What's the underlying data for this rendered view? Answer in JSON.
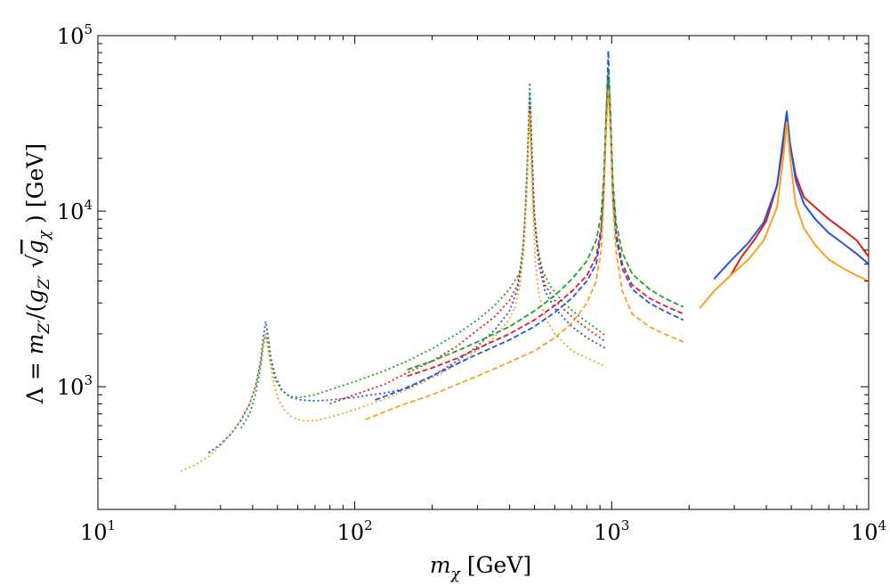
{
  "chart_data": {
    "type": "line",
    "xscale": "log",
    "yscale": "log",
    "xlim": [
      10,
      10000
    ],
    "ylim": [
      200,
      100000
    ],
    "xticks": [
      {
        "value": 10,
        "base": "10",
        "exp": "1"
      },
      {
        "value": 100,
        "base": "10",
        "exp": "2"
      },
      {
        "value": 1000,
        "base": "10",
        "exp": "3"
      },
      {
        "value": 10000,
        "base": "10",
        "exp": "4"
      }
    ],
    "yticks": [
      {
        "value": 1000,
        "base": "10",
        "exp": "3"
      },
      {
        "value": 10000,
        "base": "10",
        "exp": "4"
      },
      {
        "value": 100000,
        "base": "10",
        "exp": "5"
      }
    ],
    "xlabel": {
      "var": "m",
      "sub": "χ",
      "unit": " [GeV]"
    },
    "ylabel": {
      "lambda": "Λ = ",
      "m": "m",
      "m_sub": "Z′",
      "open": "/(",
      "g": "g",
      "g_sub": "Z′",
      "g2": "g",
      "g2_sub": "χ",
      "close": " )",
      "unit": " [GeV]"
    },
    "colors": {
      "red": "#dd1c1c",
      "blue": "#2255dd",
      "green": "#22a022",
      "orange": "#ff9f1c"
    },
    "series": [
      {
        "name": "dotted-blue-low",
        "color": "blue",
        "style": "dotted",
        "x": [
          27,
          30,
          33,
          36,
          39,
          41,
          43,
          44,
          45,
          46,
          47,
          49,
          52,
          56,
          62,
          70,
          80,
          100,
          130,
          160
        ],
        "y": [
          420,
          470,
          540,
          640,
          800,
          1000,
          1400,
          1900,
          2350,
          1950,
          1500,
          1150,
          960,
          870,
          840,
          830,
          840,
          870,
          920,
          980
        ]
      },
      {
        "name": "dotted-green-low",
        "color": "green",
        "style": "dotted",
        "x": [
          36,
          39,
          41,
          43,
          44,
          45,
          46,
          47,
          49,
          52,
          56,
          62,
          70,
          80,
          100,
          130,
          160,
          200,
          250,
          300,
          350,
          400,
          440
        ],
        "y": [
          580,
          700,
          900,
          1300,
          1700,
          2000,
          1750,
          1400,
          1100,
          950,
          880,
          870,
          900,
          960,
          1070,
          1230,
          1400,
          1650,
          2000,
          2400,
          2900,
          3600,
          4500
        ]
      },
      {
        "name": "dotted-orange-low",
        "color": "orange",
        "style": "dotted",
        "x": [
          21,
          24,
          27,
          30,
          33,
          36,
          39,
          41,
          43,
          44,
          45,
          46,
          48,
          50,
          53,
          57,
          62,
          70,
          80,
          100,
          130,
          170,
          220,
          280,
          340,
          390,
          420
        ],
        "y": [
          330,
          360,
          400,
          460,
          540,
          650,
          800,
          1000,
          1400,
          1800,
          2000,
          1600,
          1100,
          870,
          740,
          670,
          640,
          640,
          670,
          740,
          850,
          1000,
          1200,
          1500,
          1850,
          2300,
          2800
        ]
      },
      {
        "name": "dotted-blue-peak-500",
        "color": "blue",
        "style": "dotted",
        "x": [
          160,
          200,
          250,
          300,
          350,
          400,
          430,
          450,
          460,
          470,
          480,
          490,
          500,
          520,
          550,
          600,
          700,
          800,
          950
        ],
        "y": [
          980,
          1150,
          1400,
          1700,
          2100,
          2700,
          3600,
          5500,
          9000,
          20000,
          46000,
          20000,
          9000,
          5000,
          3500,
          2800,
          2200,
          1900,
          1650
        ]
      },
      {
        "name": "dotted-red-peak-500",
        "color": "red",
        "style": "dotted",
        "x": [
          80,
          100,
          130,
          160,
          200,
          250,
          300,
          350,
          400,
          430,
          450,
          460,
          470,
          480,
          490,
          500,
          520,
          550,
          600,
          700,
          800,
          950
        ],
        "y": [
          800,
          900,
          1030,
          1200,
          1400,
          1700,
          2100,
          2500,
          3100,
          3800,
          5800,
          9500,
          20000,
          40000,
          20000,
          9500,
          5500,
          3800,
          3100,
          2500,
          2150,
          1800
        ]
      },
      {
        "name": "dotted-green-peak-500",
        "color": "green",
        "style": "dotted",
        "x": [
          440,
          455,
          465,
          472,
          480,
          488,
          495,
          510,
          540,
          580,
          650,
          750,
          850,
          950
        ],
        "y": [
          4500,
          7000,
          12000,
          24000,
          54000,
          24000,
          12000,
          6500,
          4500,
          3700,
          3000,
          2500,
          2200,
          1950
        ]
      },
      {
        "name": "dotted-orange-peak-500",
        "color": "orange",
        "style": "dotted",
        "x": [
          420,
          440,
          455,
          465,
          475,
          480,
          485,
          495,
          505,
          520,
          550,
          600,
          700,
          850,
          950
        ],
        "y": [
          2800,
          3800,
          6000,
          11000,
          25000,
          36000,
          20000,
          9000,
          5000,
          3400,
          2500,
          2000,
          1600,
          1400,
          1300
        ]
      },
      {
        "name": "dashed-red-peak-1000",
        "color": "red",
        "style": "dashed",
        "x": [
          160,
          200,
          250,
          300,
          400,
          500,
          600,
          700,
          800,
          870,
          910,
          930,
          950,
          970,
          990,
          1010,
          1040,
          1100,
          1200,
          1400,
          1600,
          1900
        ],
        "y": [
          1150,
          1280,
          1450,
          1650,
          2000,
          2400,
          2900,
          3500,
          4300,
          5500,
          8000,
          13000,
          30000,
          58000,
          30000,
          13000,
          7500,
          5000,
          3800,
          3200,
          2900,
          2600
        ]
      },
      {
        "name": "dashed-blue-peak-1000",
        "color": "blue",
        "style": "dashed",
        "x": [
          120,
          150,
          200,
          250,
          300,
          400,
          500,
          600,
          700,
          800,
          870,
          910,
          930,
          950,
          970,
          990,
          1010,
          1040,
          1100,
          1200,
          1400,
          1600,
          1900
        ],
        "y": [
          840,
          950,
          1150,
          1350,
          1530,
          1850,
          2200,
          2650,
          3200,
          4000,
          5000,
          7500,
          12000,
          30000,
          82000,
          30000,
          12000,
          7000,
          4700,
          3600,
          3000,
          2700,
          2400
        ]
      },
      {
        "name": "dashed-green-peak-1000",
        "color": "green",
        "style": "dashed",
        "x": [
          160,
          200,
          250,
          300,
          400,
          500,
          600,
          700,
          800,
          870,
          910,
          930,
          950,
          970,
          990,
          1010,
          1040,
          1100,
          1200,
          1400,
          1600,
          1900
        ],
        "y": [
          1250,
          1400,
          1600,
          1800,
          2200,
          2700,
          3300,
          4100,
          5200,
          6800,
          9500,
          15000,
          35000,
          64000,
          35000,
          15000,
          8500,
          5800,
          4400,
          3600,
          3200,
          2850
        ]
      },
      {
        "name": "dashed-orange-peak-1000",
        "color": "orange",
        "style": "dashed",
        "x": [
          110,
          150,
          200,
          250,
          300,
          400,
          500,
          600,
          700,
          800,
          870,
          910,
          930,
          950,
          970,
          990,
          1010,
          1040,
          1100,
          1200,
          1400,
          1600,
          1900
        ],
        "y": [
          650,
          780,
          900,
          1030,
          1150,
          1380,
          1600,
          1900,
          2300,
          3000,
          4000,
          6000,
          11000,
          28000,
          50000,
          28000,
          11000,
          5800,
          3500,
          2600,
          2200,
          2000,
          1800
        ]
      },
      {
        "name": "solid-red",
        "color": "red",
        "style": "solid",
        "x": [
          2900,
          3200,
          3600,
          4000,
          4400,
          4650,
          4800,
          4950,
          5200,
          5600,
          6200,
          7000,
          8000,
          9000,
          10000
        ],
        "y": [
          4300,
          5500,
          6900,
          8800,
          14000,
          24000,
          34000,
          24000,
          16000,
          12000,
          10500,
          9000,
          7800,
          6800,
          5500
        ]
      },
      {
        "name": "solid-blue",
        "color": "blue",
        "style": "solid",
        "x": [
          2500,
          2900,
          3400,
          3900,
          4400,
          4650,
          4800,
          4950,
          5200,
          5600,
          6200,
          7000,
          8000,
          9000,
          10000
        ],
        "y": [
          4100,
          5200,
          6600,
          8600,
          14000,
          26000,
          37000,
          24000,
          15000,
          11000,
          9000,
          7500,
          6500,
          5700,
          5000
        ]
      },
      {
        "name": "solid-orange",
        "color": "orange",
        "style": "solid",
        "x": [
          2200,
          2500,
          2900,
          3400,
          3900,
          4400,
          4650,
          4800,
          4950,
          5200,
          5600,
          6200,
          7000,
          8000,
          9000,
          10000
        ],
        "y": [
          2800,
          3500,
          4300,
          5300,
          6800,
          10500,
          20000,
          32000,
          20000,
          11000,
          8000,
          6400,
          5300,
          4700,
          4300,
          4000
        ]
      }
    ]
  }
}
